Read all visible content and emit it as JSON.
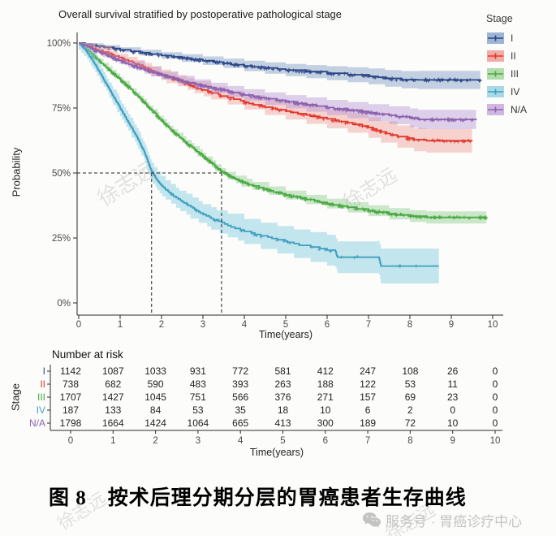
{
  "title": "Overall survival stratified by postoperative pathological stage",
  "axes": {
    "ylabel": "Probability",
    "xlabel": "Time(years)",
    "y_ticks": [
      "100%",
      "75%",
      "50%",
      "25%",
      "0%"
    ],
    "x_ticks": [
      "0",
      "1",
      "2",
      "3",
      "4",
      "5",
      "6",
      "7",
      "8",
      "9",
      "10"
    ]
  },
  "legend": {
    "title": "Stage",
    "items": [
      {
        "label": "I",
        "color": "#2c4687",
        "band": "#9db4d3"
      },
      {
        "label": "II",
        "color": "#e3362c",
        "band": "#f2aba5"
      },
      {
        "label": "III",
        "color": "#49a942",
        "band": "#b2dcab"
      },
      {
        "label": "IV",
        "color": "#3f9fc0",
        "band": "#a9d9e6"
      },
      {
        "label": "N/A",
        "color": "#8b62ae",
        "band": "#cfb7e0"
      }
    ]
  },
  "risk_table": {
    "title": "Number at risk",
    "axis_label": "Stage",
    "xlabel": "Time(years)",
    "x_ticks": [
      "0",
      "1",
      "2",
      "3",
      "4",
      "5",
      "6",
      "7",
      "8",
      "9",
      "10"
    ],
    "rows": [
      {
        "label": "I",
        "color": "#2c4687",
        "counts": [
          "1142",
          "1087",
          "1033",
          "931",
          "772",
          "581",
          "412",
          "247",
          "108",
          "26",
          "0"
        ]
      },
      {
        "label": "II",
        "color": "#e3362c",
        "counts": [
          "738",
          "682",
          "590",
          "483",
          "393",
          "263",
          "188",
          "122",
          "53",
          "11",
          "0"
        ]
      },
      {
        "label": "III",
        "color": "#49a942",
        "counts": [
          "1707",
          "1427",
          "1045",
          "751",
          "566",
          "376",
          "271",
          "157",
          "69",
          "23",
          "0"
        ]
      },
      {
        "label": "IV",
        "color": "#3f9fc0",
        "counts": [
          "187",
          "133",
          "84",
          "53",
          "35",
          "18",
          "10",
          "6",
          "2",
          "0",
          "0"
        ]
      },
      {
        "label": "N/A",
        "color": "#8b62ae",
        "counts": [
          "1798",
          "1664",
          "1424",
          "1064",
          "665",
          "413",
          "300",
          "189",
          "72",
          "10",
          "0"
        ]
      }
    ]
  },
  "caption": "图 8　按术后理分期分层的胃癌患者生存曲线",
  "watermark": {
    "diagonal_text": "徐志远",
    "badge_text": "服务号 · 胃癌诊疗中心"
  },
  "chart_data": {
    "type": "line",
    "subtype": "kaplan-meier-survival",
    "title": "Overall survival stratified by postoperative pathological stage",
    "xlabel": "Time(years)",
    "ylabel": "Probability",
    "xlim": [
      0,
      10
    ],
    "ylim_pct": [
      0,
      100
    ],
    "y_tick_pct": [
      100,
      75,
      50,
      25,
      0
    ],
    "x_tick_years": [
      0,
      1,
      2,
      3,
      4,
      5,
      6,
      7,
      8,
      9,
      10
    ],
    "grid": false,
    "legend_position": "top-right",
    "median_guides": {
      "y_pct": 50,
      "x_years": [
        1.76,
        3.45
      ]
    },
    "series": [
      {
        "name": "I",
        "color": "#2c4687",
        "band_color": "#7f9cc4",
        "band_delta_pct": [
          0.6,
          4.0
        ],
        "censor_marks": 190,
        "censor_range": [
          0.25,
          9.7
        ],
        "points_year_pct": [
          [
            0,
            100
          ],
          [
            0.3,
            99.2
          ],
          [
            0.6,
            98.4
          ],
          [
            1,
            97.4
          ],
          [
            1.5,
            96.3
          ],
          [
            2,
            95.2
          ],
          [
            2.5,
            94.2
          ],
          [
            3,
            93.2
          ],
          [
            3.5,
            92.2
          ],
          [
            4,
            91.2
          ],
          [
            4.5,
            90.4
          ],
          [
            5,
            89.6
          ],
          [
            5.5,
            89.0
          ],
          [
            6,
            88.4
          ],
          [
            6.5,
            87.8
          ],
          [
            7,
            87.2
          ],
          [
            7.4,
            86.4
          ],
          [
            7.8,
            85.9
          ],
          [
            8.2,
            85.8
          ],
          [
            9.7,
            85.8
          ]
        ]
      },
      {
        "name": "II",
        "color": "#e3362c",
        "band_color": "#ef9f98",
        "band_delta_pct": [
          1.2,
          5.0
        ],
        "censor_marks": 125,
        "censor_range": [
          0.25,
          9.5
        ],
        "points_year_pct": [
          [
            0,
            100
          ],
          [
            0.4,
            97.5
          ],
          [
            0.8,
            95.5
          ],
          [
            1.2,
            93.0
          ],
          [
            1.6,
            90.5
          ],
          [
            2,
            87.8
          ],
          [
            2.4,
            85.5
          ],
          [
            2.8,
            83.0
          ],
          [
            3.2,
            80.8
          ],
          [
            3.6,
            79.0
          ],
          [
            4,
            77.2
          ],
          [
            4.5,
            75.3
          ],
          [
            5,
            73.8
          ],
          [
            5.5,
            72.3
          ],
          [
            6,
            70.8
          ],
          [
            6.5,
            69.3
          ],
          [
            7,
            67.5
          ],
          [
            7.3,
            65.8
          ],
          [
            7.7,
            64.0
          ],
          [
            8.1,
            62.8
          ],
          [
            8.4,
            62.4
          ],
          [
            9.5,
            62.3
          ]
        ]
      },
      {
        "name": "III",
        "color": "#49a942",
        "band_color": "#90cf8e",
        "band_delta_pct": [
          0.8,
          2.6
        ],
        "censor_marks": 240,
        "censor_range": [
          0.3,
          9.85
        ],
        "points_year_pct": [
          [
            0,
            100
          ],
          [
            0.3,
            96.0
          ],
          [
            0.6,
            91.5
          ],
          [
            1,
            86.0
          ],
          [
            1.4,
            80.0
          ],
          [
            1.8,
            73.5
          ],
          [
            2.2,
            67.0
          ],
          [
            2.6,
            61.5
          ],
          [
            3,
            56.5
          ],
          [
            3.45,
            50.5
          ],
          [
            3.8,
            47.5
          ],
          [
            4.2,
            45.0
          ],
          [
            4.6,
            43.2
          ],
          [
            5,
            41.5
          ],
          [
            5.5,
            39.8
          ],
          [
            6,
            38.2
          ],
          [
            6.5,
            36.8
          ],
          [
            7,
            35.5
          ],
          [
            7.5,
            34.3
          ],
          [
            8,
            33.4
          ],
          [
            8.4,
            32.9
          ],
          [
            9.85,
            32.8
          ]
        ]
      },
      {
        "name": "IV",
        "color": "#3f9fc0",
        "band_color": "#7fc9de",
        "band_delta_pct": [
          2.5,
          7.5
        ],
        "censor_marks": 26,
        "censor_range": [
          2.2,
          8.6
        ],
        "points_year_pct": [
          [
            0,
            100
          ],
          [
            0.2,
            96.5
          ],
          [
            0.4,
            91.5
          ],
          [
            0.6,
            86.0
          ],
          [
            0.8,
            80.5
          ],
          [
            1,
            75.0
          ],
          [
            1.2,
            69.5
          ],
          [
            1.4,
            64.0
          ],
          [
            1.6,
            57.5
          ],
          [
            1.76,
            50.5
          ],
          [
            1.9,
            47.0
          ],
          [
            2.1,
            43.5
          ],
          [
            2.35,
            40.5
          ],
          [
            2.6,
            38.0
          ],
          [
            2.9,
            35.0
          ],
          [
            3.2,
            32.5
          ],
          [
            3.6,
            29.8
          ],
          [
            4,
            27.5
          ],
          [
            4.4,
            25.8
          ],
          [
            4.8,
            24.3
          ],
          [
            5.2,
            22.8
          ],
          [
            5.6,
            21.5
          ],
          [
            6,
            20.3
          ],
          [
            6.2,
            19.8
          ],
          [
            6.25,
            17.6
          ],
          [
            7.25,
            17.6
          ],
          [
            7.3,
            14.2
          ],
          [
            8.7,
            14.2
          ]
        ]
      },
      {
        "name": "N/A",
        "color": "#8b62ae",
        "band_color": "#b897d4",
        "band_delta_pct": [
          0.8,
          4.2
        ],
        "censor_marks": 250,
        "censor_range": [
          0.3,
          9.6
        ],
        "points_year_pct": [
          [
            0,
            100
          ],
          [
            0.4,
            97.0
          ],
          [
            0.8,
            94.3
          ],
          [
            1.2,
            91.8
          ],
          [
            1.6,
            89.6
          ],
          [
            2,
            87.6
          ],
          [
            2.4,
            85.8
          ],
          [
            2.8,
            84.2
          ],
          [
            3.2,
            82.8
          ],
          [
            3.6,
            81.4
          ],
          [
            4,
            80.0
          ],
          [
            4.5,
            78.6
          ],
          [
            5,
            77.4
          ],
          [
            5.5,
            76.3
          ],
          [
            6,
            75.2
          ],
          [
            6.5,
            74.2
          ],
          [
            7,
            73.2
          ],
          [
            7.5,
            72.2
          ],
          [
            8,
            71.2
          ],
          [
            8.2,
            70.6
          ],
          [
            9.6,
            70.4
          ]
        ]
      }
    ],
    "number_at_risk": {
      "years": [
        0,
        1,
        2,
        3,
        4,
        5,
        6,
        7,
        8,
        9,
        10
      ],
      "I": [
        1142,
        1087,
        1033,
        931,
        772,
        581,
        412,
        247,
        108,
        26,
        0
      ],
      "II": [
        738,
        682,
        590,
        483,
        393,
        263,
        188,
        122,
        53,
        11,
        0
      ],
      "III": [
        1707,
        1427,
        1045,
        751,
        566,
        376,
        271,
        157,
        69,
        23,
        0
      ],
      "IV": [
        187,
        133,
        84,
        53,
        35,
        18,
        10,
        6,
        2,
        0,
        0
      ],
      "N/A": [
        1798,
        1664,
        1424,
        1064,
        665,
        413,
        300,
        189,
        72,
        10,
        0
      ]
    }
  }
}
